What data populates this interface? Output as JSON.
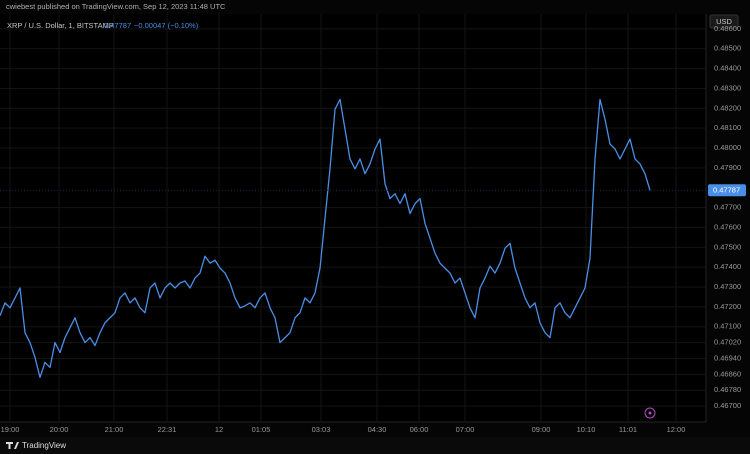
{
  "header": {
    "text": "cwiebest published on TradingView.com, Sep 12, 2023 11:48 UTC"
  },
  "footer": {
    "text": "TradingView"
  },
  "chart_data": {
    "type": "line",
    "symbol": "XRP / U.S. Dollar, 1, BITSTAMP",
    "legend_price": "0.47787",
    "legend_change": "−0.00047 (−0.10%)",
    "currency": "USD",
    "last_price": 0.47787,
    "color": "#4a8fe7",
    "grid": true,
    "ylim": [
      0.4662,
      0.48675
    ],
    "yticks": [
      {
        "value": 0.486,
        "label": "0.48600"
      },
      {
        "value": 0.485,
        "label": "0.48500"
      },
      {
        "value": 0.484,
        "label": "0.48400"
      },
      {
        "value": 0.483,
        "label": "0.48300"
      },
      {
        "value": 0.482,
        "label": "0.48200"
      },
      {
        "value": 0.481,
        "label": "0.48100"
      },
      {
        "value": 0.48,
        "label": "0.48000"
      },
      {
        "value": 0.479,
        "label": "0.47900"
      },
      {
        "value": 0.477,
        "label": "0.47700"
      },
      {
        "value": 0.476,
        "label": "0.47600"
      },
      {
        "value": 0.475,
        "label": "0.47500"
      },
      {
        "value": 0.474,
        "label": "0.47400"
      },
      {
        "value": 0.473,
        "label": "0.47300"
      },
      {
        "value": 0.472,
        "label": "0.47200"
      },
      {
        "value": 0.471,
        "label": "0.47100"
      },
      {
        "value": 0.4702,
        "label": "0.47020"
      },
      {
        "value": 0.4694,
        "label": "0.46940"
      },
      {
        "value": 0.4686,
        "label": "0.46860"
      },
      {
        "value": 0.4678,
        "label": "0.46780"
      },
      {
        "value": 0.467,
        "label": "0.46700"
      }
    ],
    "xlim": [
      0,
      141.2
    ],
    "xticks": [
      {
        "value": 2,
        "label": "19:00"
      },
      {
        "value": 11.8,
        "label": "20:00"
      },
      {
        "value": 22.8,
        "label": "21:00"
      },
      {
        "value": 33.4,
        "label": "22:31"
      },
      {
        "value": 43.8,
        "label": "12"
      },
      {
        "value": 52.2,
        "label": "01:05"
      },
      {
        "value": 64.2,
        "label": "03:03"
      },
      {
        "value": 75.4,
        "label": "04:30"
      },
      {
        "value": 83.8,
        "label": "06:00"
      },
      {
        "value": 93,
        "label": "07:00"
      },
      {
        "value": 108.2,
        "label": "09:00"
      },
      {
        "value": 117.2,
        "label": "10:10"
      },
      {
        "value": 125.6,
        "label": "11:01"
      },
      {
        "value": 135.2,
        "label": "12:00"
      }
    ],
    "values": [
      0.47155,
      0.4722,
      0.47195,
      0.47245,
      0.47295,
      0.4707,
      0.4702,
      0.46945,
      0.46845,
      0.4692,
      0.46895,
      0.4702,
      0.4697,
      0.47045,
      0.47095,
      0.47145,
      0.4707,
      0.4702,
      0.47045,
      0.47005,
      0.4707,
      0.4712,
      0.47145,
      0.4717,
      0.47245,
      0.4727,
      0.4722,
      0.47245,
      0.47195,
      0.4717,
      0.47295,
      0.4732,
      0.47245,
      0.47295,
      0.4732,
      0.47295,
      0.4732,
      0.4733,
      0.47295,
      0.47345,
      0.4737,
      0.47455,
      0.4742,
      0.47435,
      0.47395,
      0.4737,
      0.4732,
      0.47245,
      0.47195,
      0.47205,
      0.4722,
      0.47195,
      0.47245,
      0.4727,
      0.47195,
      0.47145,
      0.4702,
      0.47045,
      0.4707,
      0.47145,
      0.4717,
      0.47245,
      0.4722,
      0.4727,
      0.47395,
      0.47645,
      0.47895,
      0.48195,
      0.48245,
      0.48095,
      0.47945,
      0.47895,
      0.47945,
      0.4787,
      0.4792,
      0.47995,
      0.48045,
      0.4782,
      0.47745,
      0.4777,
      0.4772,
      0.4777,
      0.4767,
      0.4772,
      0.47745,
      0.4762,
      0.47545,
      0.4747,
      0.4742,
      0.47395,
      0.4737,
      0.4732,
      0.47345,
      0.4727,
      0.47195,
      0.47145,
      0.47295,
      0.47345,
      0.47405,
      0.4737,
      0.4742,
      0.47495,
      0.4752,
      0.47395,
      0.4732,
      0.47245,
      0.47195,
      0.4722,
      0.4712,
      0.4707,
      0.47045,
      0.47195,
      0.4722,
      0.4717,
      0.47145,
      0.47195,
      0.47245,
      0.47295,
      0.47445,
      0.47945,
      0.48245,
      0.48145,
      0.4802,
      0.47995,
      0.47945,
      0.47995,
      0.48045,
      0.47945,
      0.4792,
      0.4787,
      0.47787
    ]
  }
}
